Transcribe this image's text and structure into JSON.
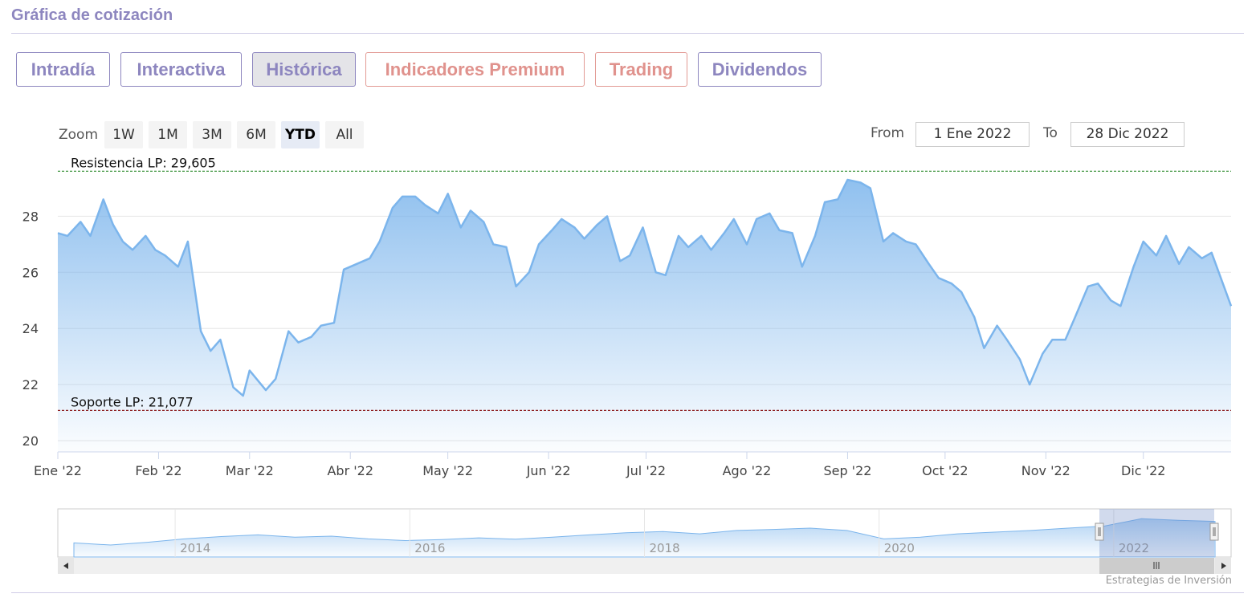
{
  "header": {
    "title": "Gráfica de cotización"
  },
  "tabs": [
    {
      "label": "Intradía",
      "active": false,
      "premium": false
    },
    {
      "label": "Interactiva",
      "active": false,
      "premium": false
    },
    {
      "label": "Histórica",
      "active": true,
      "premium": false
    },
    {
      "label": "Indicadores Premium",
      "active": false,
      "premium": true
    },
    {
      "label": "Trading",
      "active": false,
      "premium": true
    },
    {
      "label": "Dividendos",
      "active": false,
      "premium": false
    }
  ],
  "range_selector": {
    "zoom_label": "Zoom",
    "buttons": [
      "1W",
      "1M",
      "3M",
      "6M",
      "YTD",
      "All"
    ],
    "selected": "YTD",
    "from_label": "From",
    "from_value": "1 Ene 2022",
    "to_label": "To",
    "to_value": "28 Dic 2022"
  },
  "credit": "Estrategias de Inversión",
  "colors": {
    "line": "#7cb5ec",
    "resistance": "#2e8b2e",
    "support": "#8b1a1a",
    "accent": "#8d86bf",
    "premium": "#e0928d"
  },
  "chart_data": {
    "type": "area",
    "x_tick_labels": [
      "Ene '22",
      "Feb '22",
      "Mar '22",
      "Abr '22",
      "May '22",
      "Jun '22",
      "Jul '22",
      "Ago '22",
      "Sep '22",
      "Oct '22",
      "Nov '22",
      "Dic '22"
    ],
    "y_tick_labels": [
      "20",
      "22",
      "24",
      "26",
      "28"
    ],
    "ylim": [
      19.6,
      29.9
    ],
    "xlim": [
      "2022-01-01",
      "2022-12-28"
    ],
    "grid": true,
    "legend": "none",
    "series": [
      {
        "x": [
          "2022-01-01",
          "2022-01-04",
          "2022-01-08",
          "2022-01-11",
          "2022-01-15",
          "2022-01-18",
          "2022-01-21",
          "2022-01-24",
          "2022-01-28",
          "2022-01-31",
          "2022-02-03",
          "2022-02-07",
          "2022-02-10",
          "2022-02-14",
          "2022-02-17",
          "2022-02-20",
          "2022-02-24",
          "2022-02-27",
          "2022-03-01",
          "2022-03-06",
          "2022-03-09",
          "2022-03-13",
          "2022-03-16",
          "2022-03-20",
          "2022-03-23",
          "2022-03-27",
          "2022-03-30",
          "2022-04-03",
          "2022-04-07",
          "2022-04-10",
          "2022-04-14",
          "2022-04-17",
          "2022-04-21",
          "2022-04-24",
          "2022-04-28",
          "2022-05-01",
          "2022-05-05",
          "2022-05-08",
          "2022-05-12",
          "2022-05-15",
          "2022-05-19",
          "2022-05-22",
          "2022-05-26",
          "2022-05-29",
          "2022-06-02",
          "2022-06-05",
          "2022-06-09",
          "2022-06-12",
          "2022-06-16",
          "2022-06-19",
          "2022-06-23",
          "2022-06-26",
          "2022-06-30",
          "2022-07-04",
          "2022-07-07",
          "2022-07-11",
          "2022-07-14",
          "2022-07-18",
          "2022-07-21",
          "2022-07-25",
          "2022-07-28",
          "2022-08-01",
          "2022-08-04",
          "2022-08-08",
          "2022-08-11",
          "2022-08-15",
          "2022-08-18",
          "2022-08-22",
          "2022-08-25",
          "2022-08-29",
          "2022-09-01",
          "2022-09-05",
          "2022-09-08",
          "2022-09-12",
          "2022-09-15",
          "2022-09-19",
          "2022-09-22",
          "2022-09-26",
          "2022-09-29",
          "2022-10-03",
          "2022-10-06",
          "2022-10-10",
          "2022-10-13",
          "2022-10-17",
          "2022-10-20",
          "2022-10-24",
          "2022-10-27",
          "2022-10-31",
          "2022-11-03",
          "2022-11-07",
          "2022-11-10",
          "2022-11-14",
          "2022-11-17",
          "2022-11-21",
          "2022-11-24",
          "2022-11-28",
          "2022-12-01",
          "2022-12-05",
          "2022-12-08",
          "2022-12-12",
          "2022-12-15",
          "2022-12-19",
          "2022-12-22",
          "2022-12-28"
        ],
        "y": [
          27.4,
          27.3,
          27.8,
          27.3,
          28.6,
          27.7,
          27.1,
          26.8,
          27.3,
          26.8,
          26.6,
          26.2,
          27.1,
          23.9,
          23.2,
          23.6,
          21.9,
          21.6,
          22.5,
          21.8,
          22.2,
          23.9,
          23.5,
          23.7,
          24.1,
          24.2,
          26.1,
          26.3,
          26.5,
          27.1,
          28.3,
          28.7,
          28.7,
          28.4,
          28.1,
          28.8,
          27.6,
          28.2,
          27.8,
          27.0,
          26.9,
          25.5,
          26.0,
          27.0,
          27.5,
          27.9,
          27.6,
          27.2,
          27.7,
          28.0,
          26.4,
          26.6,
          27.6,
          26.0,
          25.9,
          27.3,
          26.9,
          27.3,
          26.8,
          27.4,
          27.9,
          27.0,
          27.9,
          28.1,
          27.5,
          27.4,
          26.2,
          27.3,
          28.5,
          28.6,
          29.3,
          29.2,
          29.0,
          27.1,
          27.4,
          27.1,
          27.0,
          26.3,
          25.8,
          25.6,
          25.3,
          24.4,
          23.3,
          24.1,
          23.6,
          22.9,
          22.0,
          23.1,
          23.6,
          23.6,
          24.4,
          25.5,
          25.6,
          25.0,
          24.8,
          26.2,
          27.1,
          26.6,
          27.3,
          26.3,
          26.9,
          26.5,
          26.7,
          24.8
        ]
      }
    ],
    "annotations": [
      {
        "label": "Resistencia LP: 29,605",
        "value": 29.605,
        "style": "dashed"
      },
      {
        "label": "Soporte LP: 21,077",
        "value": 21.077,
        "style": "dashed"
      }
    ],
    "navigator": {
      "tick_labels": [
        "2014",
        "2016",
        "2018",
        "2020",
        "2022"
      ],
      "selected_range": [
        "2022-01-01",
        "2022-12-28"
      ]
    }
  }
}
